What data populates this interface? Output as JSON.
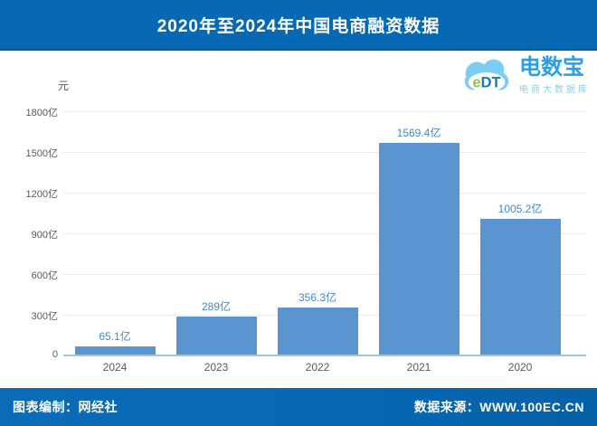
{
  "header": {
    "title": "2020年至2024年中国电商融资数据"
  },
  "logo": {
    "cloud_text_e": "e",
    "cloud_text_dt": "DT",
    "name": "电数宝",
    "subtitle": "电商大数据库"
  },
  "chart_data": {
    "type": "bar",
    "title": "2020年至2024年中国电商融资数据",
    "unit_label": "元",
    "categories": [
      "2024",
      "2023",
      "2022",
      "2021",
      "2020"
    ],
    "values": [
      65.1,
      289,
      356.3,
      1569.4,
      1005.2
    ],
    "value_labels": [
      "65.1亿",
      "289亿",
      "356.3亿",
      "1569.4亿",
      "1005.2亿"
    ],
    "ylim": [
      0,
      1800
    ],
    "y_tick_step": 300,
    "y_tick_labels": [
      "0",
      "300亿",
      "600亿",
      "900亿",
      "1200亿",
      "1500亿",
      "1800亿"
    ],
    "grid": true,
    "legend": false
  },
  "footer": {
    "left": "图表编制：网经社",
    "right": "数据来源：WWW.100EC.CN"
  },
  "colors": {
    "header_bg": "#0768b3",
    "footer_bg": "#0768b3",
    "bar": "#5a95d2",
    "value_label": "#4288ce",
    "tick_text": "#595959",
    "gridline": "#ececec",
    "axis_line": "#9fc6e7",
    "logo_name": "#2b9fe0",
    "logo_subtitle": "#8fcbe9",
    "cloud": "#7ccdf3",
    "cloud_e": "#8dc63f",
    "cloud_dt": "#1b75bb"
  }
}
